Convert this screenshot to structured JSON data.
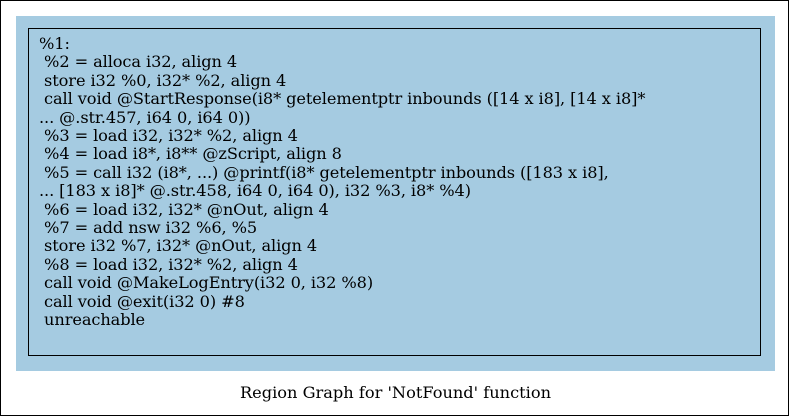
{
  "graph": {
    "caption": "Region Graph for 'NotFound' function",
    "node": {
      "lines": [
        "%1:",
        " %2 = alloca i32, align 4",
        " store i32 %0, i32* %2, align 4",
        " call void @StartResponse(i8* getelementptr inbounds ([14 x i8], [14 x i8]*",
        "... @.str.457, i64 0, i64 0))",
        " %3 = load i32, i32* %2, align 4",
        " %4 = load i8*, i8** @zScript, align 8",
        " %5 = call i32 (i8*, ...) @printf(i8* getelementptr inbounds ([183 x i8],",
        "... [183 x i8]* @.str.458, i64 0, i64 0), i32 %3, i8* %4)",
        " %6 = load i32, i32* @nOut, align 4",
        " %7 = add nsw i32 %6, %5",
        " store i32 %7, i32* @nOut, align 4",
        " %8 = load i32, i32* %2, align 4",
        " call void @MakeLogEntry(i32 0, i32 %8)",
        " call void @exit(i32 0) #8",
        " unreachable"
      ]
    },
    "colors": {
      "cluster_fill": "#a5cbe1",
      "border": "#000000"
    }
  }
}
